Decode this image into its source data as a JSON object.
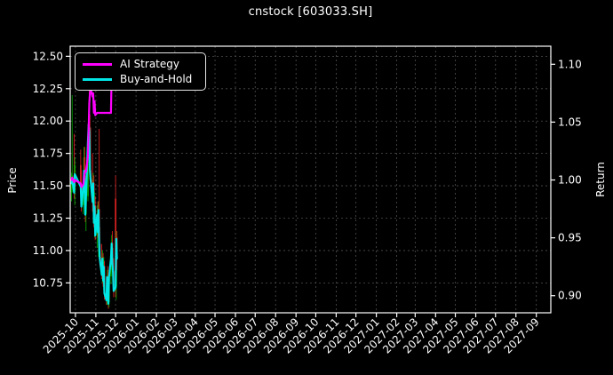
{
  "chart_data": {
    "type": "candlestick+line",
    "title": "cnstock [603033.SH]",
    "left_axis": {
      "label": "Price",
      "tick_labels": [
        "12.50",
        "12.25",
        "12.00",
        "11.75",
        "11.50",
        "11.25",
        "11.00",
        "10.75"
      ],
      "tick_values": [
        12.5,
        12.25,
        12.0,
        11.75,
        11.5,
        11.25,
        11.0,
        10.75
      ],
      "ylim": [
        10.519,
        12.578
      ]
    },
    "right_axis": {
      "label": "Return",
      "tick_labels": [
        "1.10",
        "1.05",
        "1.00",
        "0.95",
        "0.90"
      ],
      "tick_values": [
        1.1,
        1.05,
        1.0,
        0.95,
        0.9
      ],
      "ylim": [
        0.8852,
        1.1156
      ]
    },
    "x_axis": {
      "tick_labels": [
        "2025-10",
        "2025-11",
        "2025-12",
        "2026-01",
        "2026-02",
        "2026-03",
        "2026-04",
        "2026-05",
        "2026-06",
        "2026-07",
        "2026-08",
        "2026-09",
        "2026-10",
        "2026-11",
        "2026-12",
        "2027-01",
        "2027-02",
        "2027-03",
        "2027-04",
        "2027-05",
        "2027-06",
        "2027-07",
        "2027-08",
        "2027-09"
      ],
      "range": [
        "2025-09-23",
        "2027-09-23"
      ]
    },
    "grid": true,
    "legend_position": "upper left",
    "legend": [
      {
        "label": "AI Strategy",
        "color": "#ff00ff"
      },
      {
        "label": "Buy-and-Hold",
        "color": "#00e5e5"
      }
    ],
    "dates": [
      "2025-09-25",
      "2025-09-26",
      "2025-09-29",
      "2025-09-30",
      "2025-10-09",
      "2025-10-10",
      "2025-10-13",
      "2025-10-14",
      "2025-10-15",
      "2025-10-16",
      "2025-10-17",
      "2025-10-20",
      "2025-10-21",
      "2025-10-22",
      "2025-10-23",
      "2025-10-24",
      "2025-10-27",
      "2025-10-28",
      "2025-10-29",
      "2025-10-30",
      "2025-10-31",
      "2025-11-03",
      "2025-11-04",
      "2025-11-05",
      "2025-11-06",
      "2025-11-07",
      "2025-11-10",
      "2025-11-11",
      "2025-11-12",
      "2025-11-13",
      "2025-11-14",
      "2025-11-17",
      "2025-11-18",
      "2025-11-19",
      "2025-11-20",
      "2025-11-21",
      "2025-11-24",
      "2025-11-25",
      "2025-11-26",
      "2025-11-27",
      "2025-11-28",
      "2025-12-01",
      "2025-12-02",
      "2025-12-03"
    ],
    "candles_ohlc": [
      [
        11.45,
        11.6,
        11.38,
        11.52
      ],
      [
        11.52,
        12.2,
        11.45,
        11.58
      ],
      [
        11.58,
        11.9,
        11.4,
        11.45
      ],
      [
        11.45,
        11.72,
        11.35,
        11.66
      ],
      [
        11.66,
        11.78,
        11.45,
        11.5
      ],
      [
        11.5,
        11.62,
        11.3,
        11.35
      ],
      [
        11.35,
        11.55,
        11.28,
        11.5
      ],
      [
        11.5,
        11.8,
        11.42,
        11.72
      ],
      [
        11.72,
        11.8,
        11.45,
        11.5
      ],
      [
        11.5,
        11.58,
        11.22,
        11.28
      ],
      [
        11.28,
        11.48,
        11.15,
        11.42
      ],
      [
        11.42,
        11.88,
        11.38,
        11.85
      ],
      [
        11.85,
        12.05,
        11.7,
        11.98
      ],
      [
        11.98,
        12.25,
        11.85,
        11.92
      ],
      [
        11.92,
        12.05,
        11.55,
        11.62
      ],
      [
        11.62,
        11.95,
        11.5,
        11.55
      ],
      [
        11.55,
        11.75,
        11.3,
        11.38
      ],
      [
        11.38,
        11.6,
        11.25,
        11.52
      ],
      [
        11.52,
        11.58,
        11.18,
        11.22
      ],
      [
        11.22,
        11.45,
        11.1,
        11.35
      ],
      [
        11.35,
        11.42,
        11.08,
        11.12
      ],
      [
        11.12,
        11.35,
        11.02,
        11.28
      ],
      [
        11.28,
        11.38,
        11.1,
        11.15
      ],
      [
        11.15,
        11.38,
        10.95,
        11.32
      ],
      [
        11.32,
        11.94,
        10.98,
        11.05
      ],
      [
        11.05,
        11.18,
        10.88,
        10.95
      ],
      [
        10.95,
        11.05,
        10.78,
        10.82
      ],
      [
        10.82,
        11.0,
        10.75,
        10.95
      ],
      [
        10.95,
        10.98,
        10.72,
        10.78
      ],
      [
        10.78,
        10.95,
        10.7,
        10.88
      ],
      [
        10.88,
        10.92,
        10.62,
        10.68
      ],
      [
        10.68,
        10.8,
        10.58,
        10.63
      ],
      [
        10.63,
        10.85,
        10.58,
        10.8
      ],
      [
        10.8,
        10.88,
        10.66,
        10.7
      ],
      [
        10.7,
        10.78,
        10.55,
        10.6
      ],
      [
        10.6,
        10.85,
        10.56,
        10.8
      ],
      [
        10.8,
        11.0,
        10.74,
        10.95
      ],
      [
        10.95,
        11.12,
        10.85,
        11.06
      ],
      [
        11.06,
        11.15,
        10.88,
        10.92
      ],
      [
        10.92,
        11.02,
        10.78,
        10.84
      ],
      [
        10.84,
        10.94,
        10.64,
        10.7
      ],
      [
        11.4,
        11.58,
        10.64,
        10.72
      ],
      [
        10.72,
        11.15,
        10.62,
        11.1
      ],
      [
        11.1,
        11.15,
        10.85,
        10.95
      ]
    ],
    "series": [
      {
        "name": "AI Strategy",
        "axis": "return",
        "color": "#ff00ff",
        "values": [
          1.0,
          1.002,
          0.998,
          1.0,
          0.997,
          0.994,
          0.996,
          1.002,
          1.006,
          1.008,
          1.007,
          1.02,
          1.045,
          1.066,
          1.075,
          1.079,
          1.072,
          1.075,
          1.058,
          1.068,
          1.056,
          1.058,
          1.058,
          1.058,
          1.058,
          1.058,
          1.058,
          1.058,
          1.058,
          1.058,
          1.058,
          1.058,
          1.058,
          1.058,
          1.058,
          1.058,
          1.058,
          1.095,
          1.095,
          1.095,
          1.095,
          1.095,
          1.095,
          1.095
        ]
      },
      {
        "name": "Buy-and-Hold",
        "axis": "return",
        "color": "#00e5e5",
        "values": [
          0.997,
          1.001,
          0.989,
          1.005,
          0.994,
          0.977,
          0.994,
          1.008,
          0.994,
          0.97,
          0.985,
          1.034,
          1.048,
          1.042,
          1.008,
          1.0,
          0.981,
          0.997,
          0.963,
          0.977,
          0.952,
          0.97,
          0.955,
          0.974,
          0.944,
          0.932,
          0.918,
          0.932,
          0.913,
          0.925,
          0.902,
          0.896,
          0.916,
          0.904,
          0.893,
          0.916,
          0.932,
          0.945,
          0.929,
          0.92,
          0.904,
          0.907,
          0.949,
          0.932
        ]
      }
    ],
    "colors": {
      "up": "#00a000",
      "down": "#d02020",
      "background": "#000000",
      "text": "#ffffff",
      "grid": "#4f4f4f",
      "frame": "#ffffff",
      "ai_strategy": "#ff00ff",
      "buy_and_hold": "#00e5e5"
    }
  }
}
